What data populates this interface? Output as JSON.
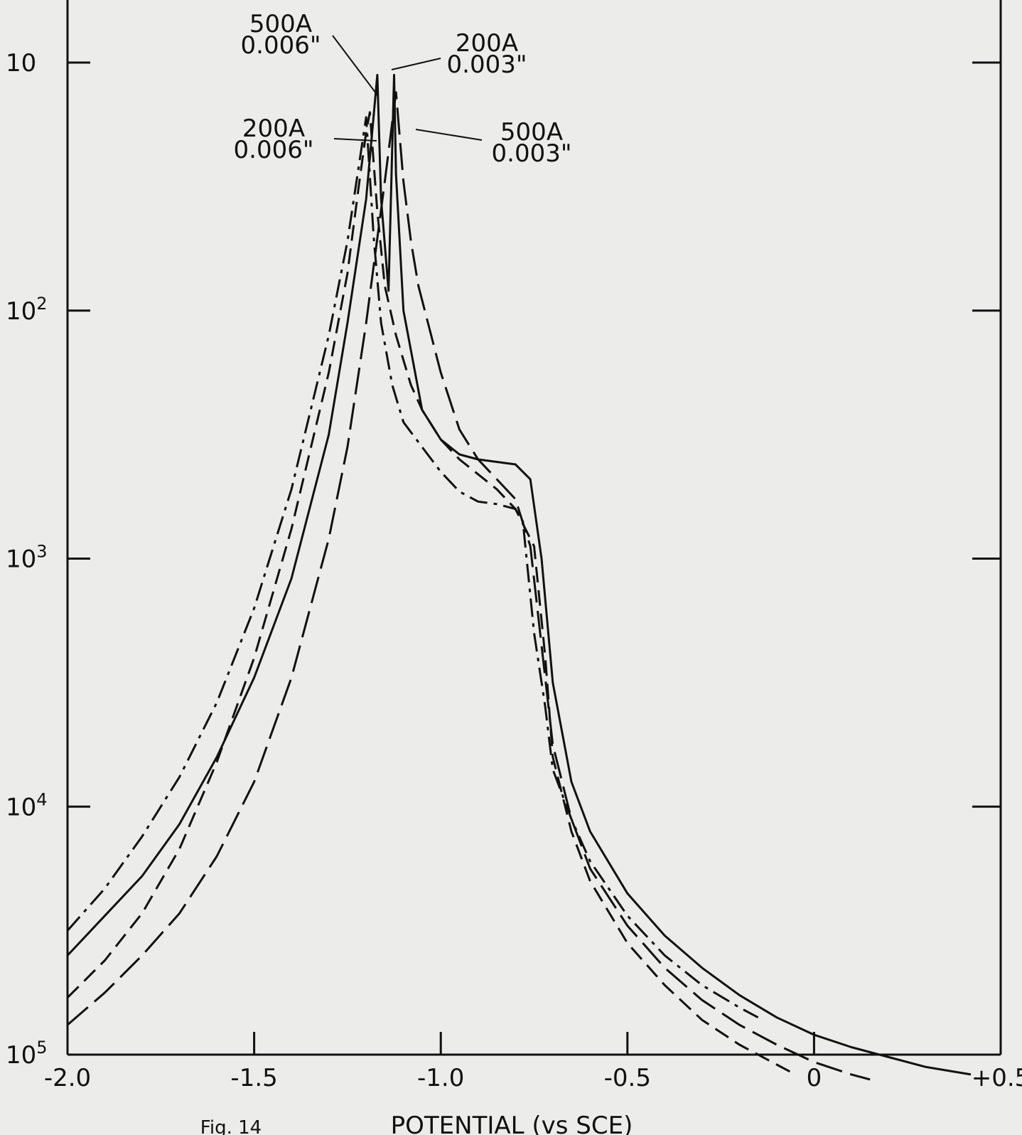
{
  "chart_data": {
    "type": "line",
    "xlabel": "POTENTIAL (vs SCE)",
    "caption_fragment": "Fig. 14",
    "xlim": [
      -2.0,
      0.5
    ],
    "x_ticks": [
      {
        "value": -2.0,
        "label": "-2.0"
      },
      {
        "value": -1.5,
        "label": "-1.5"
      },
      {
        "value": -1.0,
        "label": "-1.0"
      },
      {
        "value": -0.5,
        "label": "-0.5"
      },
      {
        "value": 0,
        "label": "0"
      },
      {
        "value": 0.5,
        "label": "+0.5"
      }
    ],
    "y_scale": "log, inverted (10 at top, 10^5 at bottom)",
    "y_ticks": [
      {
        "exp": 1,
        "base": "10",
        "sup": ""
      },
      {
        "exp": 2,
        "base": "10",
        "sup": "2"
      },
      {
        "exp": 3,
        "base": "10",
        "sup": "3"
      },
      {
        "exp": 4,
        "base": "10",
        "sup": "4"
      },
      {
        "exp": 5,
        "base": "10",
        "sup": "5"
      }
    ],
    "annotations": [
      {
        "line1": "500A",
        "line2": "0.006\""
      },
      {
        "line1": "200A",
        "line2": "0.003\""
      },
      {
        "line1": "200A",
        "line2": "0.006\""
      },
      {
        "line1": "500A",
        "line2": "0.003\""
      }
    ],
    "series": [
      {
        "style": "solid",
        "points": [
          [
            -2.0,
            4.6
          ],
          [
            -1.9,
            4.44
          ],
          [
            -1.8,
            4.28
          ],
          [
            -1.7,
            4.07
          ],
          [
            -1.6,
            3.8
          ],
          [
            -1.5,
            3.48
          ],
          [
            -1.4,
            3.08
          ],
          [
            -1.3,
            2.5
          ],
          [
            -1.25,
            2.05
          ],
          [
            -1.2,
            1.55
          ],
          [
            -1.17,
            1.05
          ],
          [
            -1.16,
            1.55
          ],
          [
            -1.14,
            1.92
          ],
          [
            -1.125,
            1.05
          ],
          [
            -1.12,
            1.45
          ],
          [
            -1.1,
            2.0
          ],
          [
            -1.05,
            2.4
          ],
          [
            -1.0,
            2.52
          ],
          [
            -0.95,
            2.58
          ],
          [
            -0.9,
            2.6
          ],
          [
            -0.8,
            2.62
          ],
          [
            -0.76,
            2.68
          ],
          [
            -0.73,
            3.0
          ],
          [
            -0.7,
            3.5
          ],
          [
            -0.65,
            3.9
          ],
          [
            -0.6,
            4.1
          ],
          [
            -0.5,
            4.35
          ],
          [
            -0.4,
            4.52
          ],
          [
            -0.3,
            4.65
          ],
          [
            -0.2,
            4.76
          ],
          [
            -0.1,
            4.85
          ],
          [
            0.0,
            4.92
          ],
          [
            0.1,
            4.97
          ],
          [
            0.2,
            5.01
          ],
          [
            0.3,
            5.05
          ],
          [
            0.42,
            5.08
          ]
        ]
      },
      {
        "style": "dashed",
        "points": [
          [
            -2.0,
            4.77
          ],
          [
            -1.9,
            4.62
          ],
          [
            -1.8,
            4.43
          ],
          [
            -1.7,
            4.17
          ],
          [
            -1.6,
            3.82
          ],
          [
            -1.5,
            3.4
          ],
          [
            -1.4,
            2.88
          ],
          [
            -1.3,
            2.25
          ],
          [
            -1.25,
            1.85
          ],
          [
            -1.22,
            1.5
          ],
          [
            -1.2,
            1.28
          ],
          [
            -1.19,
            1.2
          ],
          [
            -1.17,
            1.6
          ],
          [
            -1.15,
            1.9
          ],
          [
            -1.12,
            2.1
          ],
          [
            -1.08,
            2.3
          ],
          [
            -1.05,
            2.4
          ],
          [
            -1.0,
            2.52
          ],
          [
            -0.95,
            2.6
          ],
          [
            -0.9,
            2.66
          ],
          [
            -0.85,
            2.72
          ],
          [
            -0.8,
            2.8
          ],
          [
            -0.75,
            2.95
          ],
          [
            -0.72,
            3.4
          ],
          [
            -0.7,
            3.8
          ],
          [
            -0.65,
            4.1
          ],
          [
            -0.6,
            4.3
          ],
          [
            -0.5,
            4.55
          ],
          [
            -0.4,
            4.72
          ],
          [
            -0.3,
            4.86
          ],
          [
            -0.2,
            4.96
          ],
          [
            -0.1,
            5.04
          ],
          [
            -0.05,
            5.08
          ]
        ]
      },
      {
        "style": "dash-dot",
        "points": [
          [
            -2.0,
            4.5
          ],
          [
            -1.9,
            4.33
          ],
          [
            -1.8,
            4.12
          ],
          [
            -1.7,
            3.88
          ],
          [
            -1.6,
            3.58
          ],
          [
            -1.5,
            3.2
          ],
          [
            -1.4,
            2.72
          ],
          [
            -1.3,
            2.1
          ],
          [
            -1.25,
            1.72
          ],
          [
            -1.22,
            1.42
          ],
          [
            -1.2,
            1.22
          ],
          [
            -1.18,
            1.7
          ],
          [
            -1.16,
            2.05
          ],
          [
            -1.13,
            2.3
          ],
          [
            -1.1,
            2.45
          ],
          [
            -1.05,
            2.55
          ],
          [
            -1.0,
            2.65
          ],
          [
            -0.95,
            2.73
          ],
          [
            -0.9,
            2.77
          ],
          [
            -0.85,
            2.78
          ],
          [
            -0.8,
            2.8
          ],
          [
            -0.78,
            2.85
          ],
          [
            -0.75,
            3.3
          ],
          [
            -0.72,
            3.6
          ],
          [
            -0.7,
            3.85
          ],
          [
            -0.65,
            4.05
          ],
          [
            -0.6,
            4.22
          ],
          [
            -0.5,
            4.44
          ],
          [
            -0.4,
            4.6
          ],
          [
            -0.3,
            4.72
          ],
          [
            -0.2,
            4.81
          ],
          [
            -0.15,
            4.85
          ]
        ]
      },
      {
        "style": "long-dash",
        "points": [
          [
            -2.0,
            4.88
          ],
          [
            -1.9,
            4.75
          ],
          [
            -1.8,
            4.6
          ],
          [
            -1.7,
            4.43
          ],
          [
            -1.6,
            4.2
          ],
          [
            -1.5,
            3.9
          ],
          [
            -1.4,
            3.48
          ],
          [
            -1.3,
            2.92
          ],
          [
            -1.25,
            2.55
          ],
          [
            -1.2,
            2.05
          ],
          [
            -1.15,
            1.48
          ],
          [
            -1.12,
            1.12
          ],
          [
            -1.1,
            1.48
          ],
          [
            -1.08,
            1.72
          ],
          [
            -1.06,
            1.9
          ],
          [
            -1.0,
            2.25
          ],
          [
            -0.95,
            2.48
          ],
          [
            -0.9,
            2.6
          ],
          [
            -0.85,
            2.68
          ],
          [
            -0.8,
            2.76
          ],
          [
            -0.76,
            2.95
          ],
          [
            -0.73,
            3.35
          ],
          [
            -0.7,
            3.75
          ],
          [
            -0.65,
            4.05
          ],
          [
            -0.6,
            4.25
          ],
          [
            -0.5,
            4.48
          ],
          [
            -0.4,
            4.65
          ],
          [
            -0.3,
            4.78
          ],
          [
            -0.2,
            4.88
          ],
          [
            -0.1,
            4.96
          ],
          [
            0.0,
            5.03
          ],
          [
            0.1,
            5.08
          ],
          [
            0.15,
            5.1
          ]
        ]
      }
    ]
  }
}
